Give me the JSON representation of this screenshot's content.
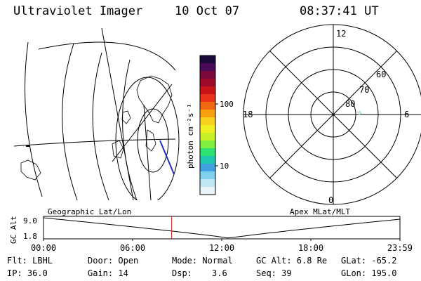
{
  "header": {
    "instrument": "Ultraviolet Imager",
    "date": "10 Oct 07",
    "time": "08:37:41 UT"
  },
  "colorbar": {
    "unit_label": "photon cm⁻²s⁻¹",
    "ticks": [
      "100",
      "10"
    ],
    "colors": [
      "#1a0a3a",
      "#4a0a5a",
      "#7a0a3a",
      "#a00a2a",
      "#c81418",
      "#e8321a",
      "#f06a14",
      "#f8a010",
      "#f8d020",
      "#f0f020",
      "#c8f028",
      "#80f040",
      "#30e070",
      "#20c8b0",
      "#40a0e0",
      "#80d0f0",
      "#c0e8f4",
      "#e8f4f8"
    ]
  },
  "polar": {
    "mlt_labels": [
      "12",
      "18",
      "6",
      "0"
    ],
    "lat_labels": [
      "60",
      "70",
      "80"
    ]
  },
  "timeline": {
    "left_label": "Geographic Lat/Lon",
    "right_label": "Apex MLat/MLT",
    "y_axis_label": "GC Alt",
    "y_ticks": [
      "9.0",
      "1.8"
    ],
    "x_ticks": [
      "00:00",
      "06:00",
      "12:00",
      "18:00",
      "23:59"
    ],
    "marker_time_hours": 8.628,
    "marker_color": "#d02020"
  },
  "info": {
    "flt": "Flt: LBHL",
    "ip": "IP: 36.0",
    "door": "Door: Open",
    "gain": "Gain: 14",
    "mode": "Mode: Normal",
    "dsp_label": "Dsp:",
    "dsp_value": "3.6",
    "gc_alt": "GC Alt: 6.8 Re",
    "seq": "Seq: 39",
    "glat": "GLat: -65.2",
    "glon": "GLon: 195.0"
  }
}
